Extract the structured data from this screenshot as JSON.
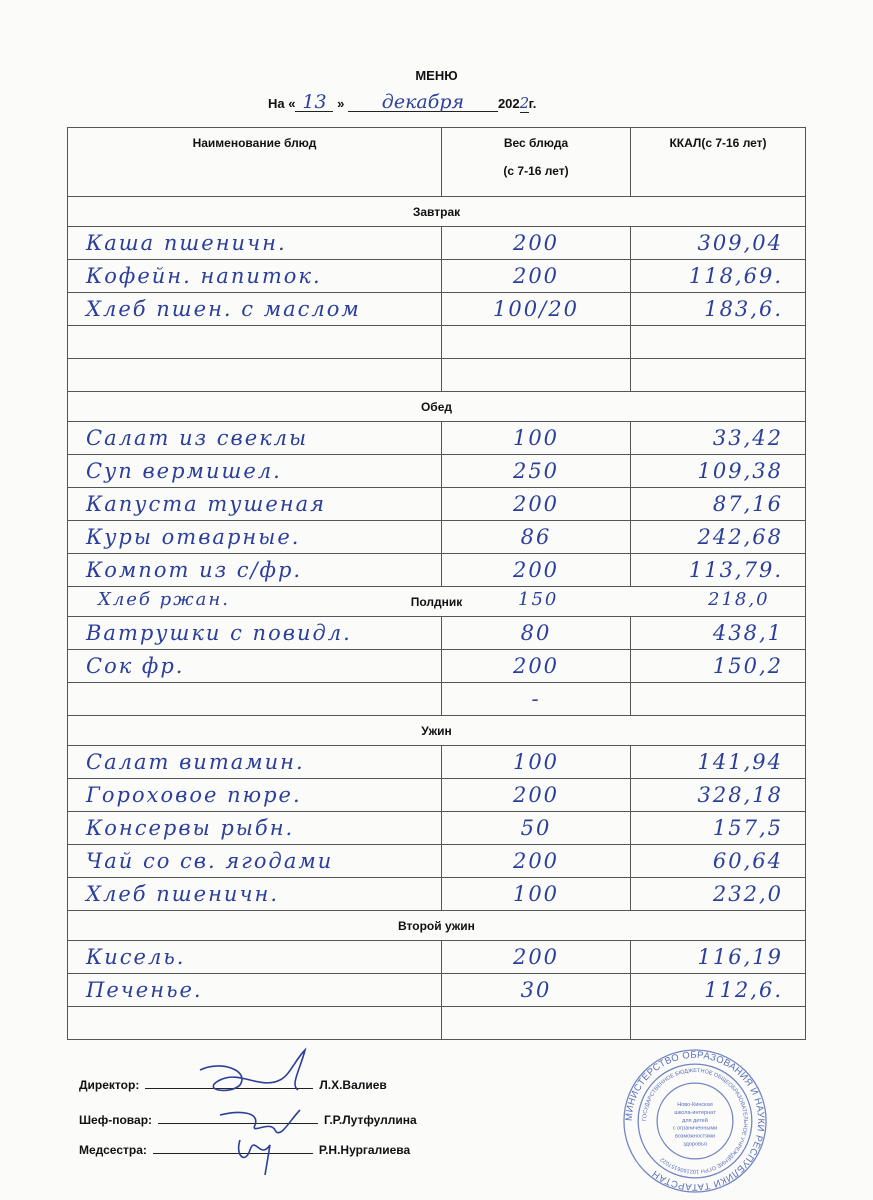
{
  "document": {
    "title": "МЕНЮ",
    "date_prefix": "На «",
    "day": "13",
    "date_mid": "»",
    "month": "декабря",
    "year_prefix": "202",
    "year_digit": "2",
    "year_suffix": "г."
  },
  "table": {
    "headers": {
      "name": "Наименование блюд",
      "weight": "Вес блюда",
      "weight_sub": "(с 7-16 лет)",
      "kcal": "ККАЛ(с 7-16 лет)"
    },
    "sections": [
      {
        "title": "Завтрак",
        "rows": [
          {
            "name": "Каша пшеничн.",
            "weight": "200",
            "kcal": "309,04"
          },
          {
            "name": "Кофейн. напиток.",
            "weight": "200",
            "kcal": "118,69."
          },
          {
            "name": "Хлеб пшен. с маслом",
            "weight": "100/20",
            "kcal": "183,6."
          },
          {
            "name": "",
            "weight": "",
            "kcal": ""
          },
          {
            "name": "",
            "weight": "",
            "kcal": ""
          }
        ]
      },
      {
        "title": "Обед",
        "rows": [
          {
            "name": "Салат из свеклы",
            "weight": "100",
            "kcal": "33,42"
          },
          {
            "name": "Суп вермишел.",
            "weight": "250",
            "kcal": "109,38"
          },
          {
            "name": "Капуста тушеная",
            "weight": "200",
            "kcal": "87,16"
          },
          {
            "name": "Куры отварные.",
            "weight": "86",
            "kcal": "242,68"
          },
          {
            "name": "Компот из с/фр.",
            "weight": "200",
            "kcal": "113,79."
          }
        ]
      },
      {
        "title": "Полдник",
        "overlay": {
          "name": "Хлеб ржан.",
          "weight": "150",
          "kcal": "218,0"
        },
        "rows": [
          {
            "name": "Ватрушки с повидл.",
            "weight": "80",
            "kcal": "438,1"
          },
          {
            "name": "Сок фр.",
            "weight": "200",
            "kcal": "150,2"
          },
          {
            "name": "",
            "weight": "-",
            "kcal": ""
          }
        ]
      },
      {
        "title": "Ужин",
        "rows": [
          {
            "name": "Салат витамин.",
            "weight": "100",
            "kcal": "141,94"
          },
          {
            "name": "Гороховое пюре.",
            "weight": "200",
            "kcal": "328,18"
          },
          {
            "name": "Консервы рыбн.",
            "weight": "50",
            "kcal": "157,5"
          },
          {
            "name": "Чай со св. ягодами",
            "weight": "200",
            "kcal": "60,64"
          },
          {
            "name": "Хлеб пшеничн.",
            "weight": "100",
            "kcal": "232,0"
          }
        ]
      },
      {
        "title": "Второй ужин",
        "rows": [
          {
            "name": "Кисель.",
            "weight": "200",
            "kcal": "116,19"
          },
          {
            "name": "Печенье.",
            "weight": "30",
            "kcal": "112,6."
          },
          {
            "name": "",
            "weight": "",
            "kcal": ""
          }
        ]
      }
    ]
  },
  "signatures": [
    {
      "role": "Директор:",
      "person": "Л.Х.Валиев"
    },
    {
      "role": "Шеф-повар:",
      "person": "Г.Р.Лутфуллина"
    },
    {
      "role": "Медсестра:",
      "person": "Р.Н.Нургалиева"
    }
  ],
  "stamp": {
    "outer": "МИНИСТЕРСТВО ОБРАЗОВАНИЯ И НАУКИ РЕСПУБЛИКИ ТАТАРСТАН",
    "ring": "ГОСУДАРСТВЕННОЕ БЮДЖЕТНОЕ ОБЩЕОБРАЗОВАТЕЛЬНОЕ УЧРЕЖДЕНИЕ",
    "ogrn": "ОГРН 1021606157022",
    "center": "Ново-Кинская школа-интернат для детей с ограниченными возможностями здоровья"
  },
  "colors": {
    "ink": "#2b3f9a",
    "stamp": "#5a6fb8"
  }
}
